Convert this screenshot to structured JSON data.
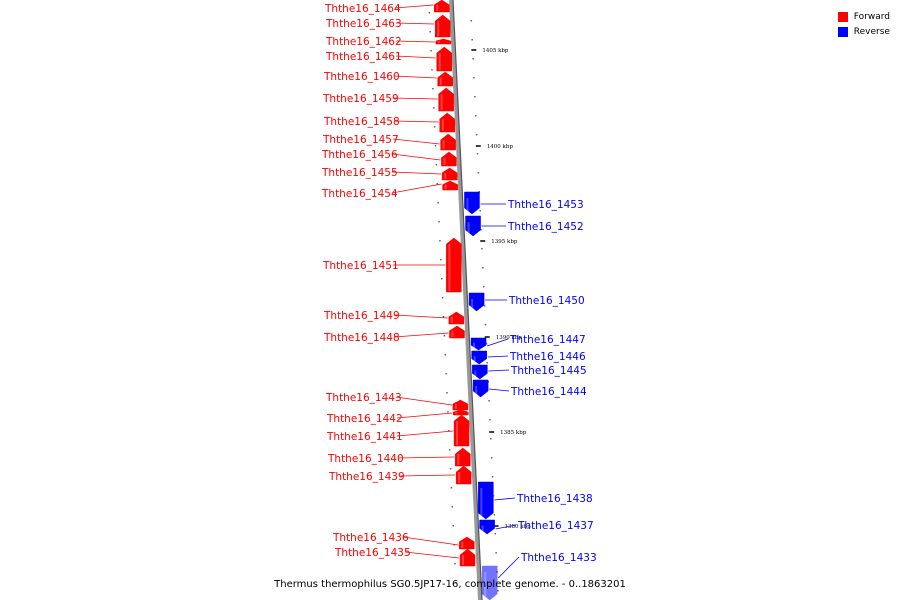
{
  "legend": {
    "forward_label": "Forward",
    "reverse_label": "Reverse",
    "forward_color": "#ff0000",
    "reverse_color": "#0000ff"
  },
  "caption": "Thermus thermophilus SG0.5JP17-16, complete genome. - 0..1863201",
  "axis": {
    "ticks": [
      "1405 kbp",
      "1400 kbp",
      "1395 kbp",
      "1390 kbp",
      "1385 kbp",
      "1380 kbp"
    ]
  },
  "genes": [
    {
      "name": "Ththe16_1464",
      "strand": "forward"
    },
    {
      "name": "Ththe16_1463",
      "strand": "forward"
    },
    {
      "name": "Ththe16_1462",
      "strand": "forward"
    },
    {
      "name": "Ththe16_1461",
      "strand": "forward"
    },
    {
      "name": "Ththe16_1460",
      "strand": "forward"
    },
    {
      "name": "Ththe16_1459",
      "strand": "forward"
    },
    {
      "name": "Ththe16_1458",
      "strand": "forward"
    },
    {
      "name": "Ththe16_1457",
      "strand": "forward"
    },
    {
      "name": "Ththe16_1456",
      "strand": "forward"
    },
    {
      "name": "Ththe16_1455",
      "strand": "forward"
    },
    {
      "name": "Ththe16_1454",
      "strand": "forward"
    },
    {
      "name": "Ththe16_1453",
      "strand": "reverse"
    },
    {
      "name": "Ththe16_1452",
      "strand": "reverse"
    },
    {
      "name": "Ththe16_1451",
      "strand": "forward"
    },
    {
      "name": "Ththe16_1450",
      "strand": "reverse"
    },
    {
      "name": "Ththe16_1449",
      "strand": "forward"
    },
    {
      "name": "Ththe16_1448",
      "strand": "forward"
    },
    {
      "name": "Ththe16_1447",
      "strand": "reverse"
    },
    {
      "name": "Ththe16_1446",
      "strand": "reverse"
    },
    {
      "name": "Ththe16_1445",
      "strand": "reverse"
    },
    {
      "name": "Ththe16_1444",
      "strand": "reverse"
    },
    {
      "name": "Ththe16_1443",
      "strand": "forward"
    },
    {
      "name": "Ththe16_1442",
      "strand": "forward"
    },
    {
      "name": "Ththe16_1441",
      "strand": "forward"
    },
    {
      "name": "Ththe16_1440",
      "strand": "forward"
    },
    {
      "name": "Ththe16_1439",
      "strand": "forward"
    },
    {
      "name": "Ththe16_1438",
      "strand": "reverse"
    },
    {
      "name": "Ththe16_1437",
      "strand": "reverse"
    },
    {
      "name": "Ththe16_1436",
      "strand": "forward"
    },
    {
      "name": "Ththe16_1435",
      "strand": "forward"
    },
    {
      "name": "Ththe16_1433",
      "strand": "reverse"
    }
  ]
}
